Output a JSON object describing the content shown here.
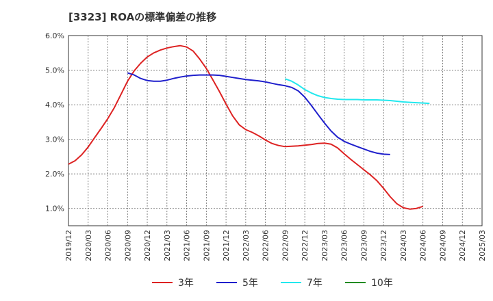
{
  "chart_data": {
    "type": "line",
    "title": "[3323]  ROAの標準偏差の推移",
    "xlabel": "",
    "ylabel": "",
    "x_ticks": [
      "2019/12",
      "2020/03",
      "2020/06",
      "2020/09",
      "2020/12",
      "2021/03",
      "2021/06",
      "2021/09",
      "2021/12",
      "2022/03",
      "2022/06",
      "2022/09",
      "2022/12",
      "2023/03",
      "2023/06",
      "2023/09",
      "2023/12",
      "2024/03",
      "2024/06",
      "2024/09",
      "2024/12",
      "2025/03"
    ],
    "y_ticks": [
      "1.0%",
      "2.0%",
      "3.0%",
      "4.0%",
      "5.0%",
      "6.0%"
    ],
    "y_tick_values": [
      1.0,
      2.0,
      3.0,
      4.0,
      5.0,
      6.0
    ],
    "ylim": [
      0.5,
      6.0
    ],
    "grid": true,
    "legend_position": "bottom",
    "series": [
      {
        "name": "3年",
        "color": "#dd2222",
        "points": [
          [
            "2019/12",
            2.28
          ],
          [
            "2020/01",
            2.38
          ],
          [
            "2020/02",
            2.55
          ],
          [
            "2020/03",
            2.78
          ],
          [
            "2020/04",
            3.05
          ],
          [
            "2020/05",
            3.32
          ],
          [
            "2020/06",
            3.6
          ],
          [
            "2020/07",
            3.92
          ],
          [
            "2020/08",
            4.3
          ],
          [
            "2020/09",
            4.68
          ],
          [
            "2020/10",
            4.98
          ],
          [
            "2020/11",
            5.2
          ],
          [
            "2020/12",
            5.38
          ],
          [
            "2021/01",
            5.5
          ],
          [
            "2021/02",
            5.58
          ],
          [
            "2021/03",
            5.64
          ],
          [
            "2021/04",
            5.68
          ],
          [
            "2021/05",
            5.71
          ],
          [
            "2021/06",
            5.67
          ],
          [
            "2021/07",
            5.55
          ],
          [
            "2021/08",
            5.32
          ],
          [
            "2021/09",
            5.05
          ],
          [
            "2021/10",
            4.72
          ],
          [
            "2021/11",
            4.38
          ],
          [
            "2021/12",
            4.02
          ],
          [
            "2022/01",
            3.68
          ],
          [
            "2022/02",
            3.42
          ],
          [
            "2022/03",
            3.28
          ],
          [
            "2022/04",
            3.2
          ],
          [
            "2022/05",
            3.1
          ],
          [
            "2022/06",
            2.98
          ],
          [
            "2022/07",
            2.88
          ],
          [
            "2022/08",
            2.82
          ],
          [
            "2022/09",
            2.79
          ],
          [
            "2022/10",
            2.8
          ],
          [
            "2022/11",
            2.81
          ],
          [
            "2022/12",
            2.83
          ],
          [
            "2023/01",
            2.85
          ],
          [
            "2023/02",
            2.88
          ],
          [
            "2023/03",
            2.89
          ],
          [
            "2023/04",
            2.86
          ],
          [
            "2023/05",
            2.75
          ],
          [
            "2023/06",
            2.58
          ],
          [
            "2023/07",
            2.42
          ],
          [
            "2023/08",
            2.27
          ],
          [
            "2023/09",
            2.12
          ],
          [
            "2023/10",
            1.97
          ],
          [
            "2023/11",
            1.8
          ],
          [
            "2023/12",
            1.58
          ],
          [
            "2024/01",
            1.34
          ],
          [
            "2024/02",
            1.14
          ],
          [
            "2024/03",
            1.02
          ],
          [
            "2024/04",
            0.98
          ],
          [
            "2024/05",
            1.0
          ],
          [
            "2024/06",
            1.06
          ]
        ]
      },
      {
        "name": "5年",
        "color": "#1f1fcc",
        "points": [
          [
            "2020/09",
            4.92
          ],
          [
            "2020/10",
            4.86
          ],
          [
            "2020/11",
            4.76
          ],
          [
            "2020/12",
            4.7
          ],
          [
            "2021/01",
            4.68
          ],
          [
            "2021/02",
            4.68
          ],
          [
            "2021/03",
            4.71
          ],
          [
            "2021/04",
            4.76
          ],
          [
            "2021/05",
            4.8
          ],
          [
            "2021/06",
            4.83
          ],
          [
            "2021/07",
            4.85
          ],
          [
            "2021/08",
            4.86
          ],
          [
            "2021/09",
            4.86
          ],
          [
            "2021/10",
            4.86
          ],
          [
            "2021/11",
            4.85
          ],
          [
            "2021/12",
            4.82
          ],
          [
            "2022/01",
            4.79
          ],
          [
            "2022/02",
            4.76
          ],
          [
            "2022/03",
            4.73
          ],
          [
            "2022/04",
            4.71
          ],
          [
            "2022/05",
            4.69
          ],
          [
            "2022/06",
            4.66
          ],
          [
            "2022/07",
            4.62
          ],
          [
            "2022/08",
            4.58
          ],
          [
            "2022/09",
            4.55
          ],
          [
            "2022/10",
            4.5
          ],
          [
            "2022/11",
            4.4
          ],
          [
            "2022/12",
            4.22
          ],
          [
            "2023/01",
            3.98
          ],
          [
            "2023/02",
            3.72
          ],
          [
            "2023/03",
            3.47
          ],
          [
            "2023/04",
            3.24
          ],
          [
            "2023/05",
            3.06
          ],
          [
            "2023/06",
            2.94
          ],
          [
            "2023/07",
            2.86
          ],
          [
            "2023/08",
            2.79
          ],
          [
            "2023/09",
            2.72
          ],
          [
            "2023/10",
            2.65
          ],
          [
            "2023/11",
            2.6
          ],
          [
            "2023/12",
            2.57
          ],
          [
            "2024/01",
            2.56
          ]
        ]
      },
      {
        "name": "7年",
        "color": "#22e8ee",
        "points": [
          [
            "2022/09",
            4.75
          ],
          [
            "2022/10",
            4.68
          ],
          [
            "2022/11",
            4.57
          ],
          [
            "2022/12",
            4.44
          ],
          [
            "2023/01",
            4.34
          ],
          [
            "2023/02",
            4.26
          ],
          [
            "2023/03",
            4.21
          ],
          [
            "2023/04",
            4.18
          ],
          [
            "2023/05",
            4.16
          ],
          [
            "2023/06",
            4.15
          ],
          [
            "2023/07",
            4.15
          ],
          [
            "2023/08",
            4.15
          ],
          [
            "2023/09",
            4.14
          ],
          [
            "2023/10",
            4.14
          ],
          [
            "2023/11",
            4.14
          ],
          [
            "2023/12",
            4.13
          ],
          [
            "2024/01",
            4.12
          ],
          [
            "2024/02",
            4.1
          ],
          [
            "2024/03",
            4.08
          ],
          [
            "2024/04",
            4.07
          ],
          [
            "2024/05",
            4.06
          ],
          [
            "2024/06",
            4.05
          ],
          [
            "2024/07",
            4.04
          ]
        ]
      },
      {
        "name": "10年",
        "color": "#228b22",
        "points": []
      }
    ]
  }
}
